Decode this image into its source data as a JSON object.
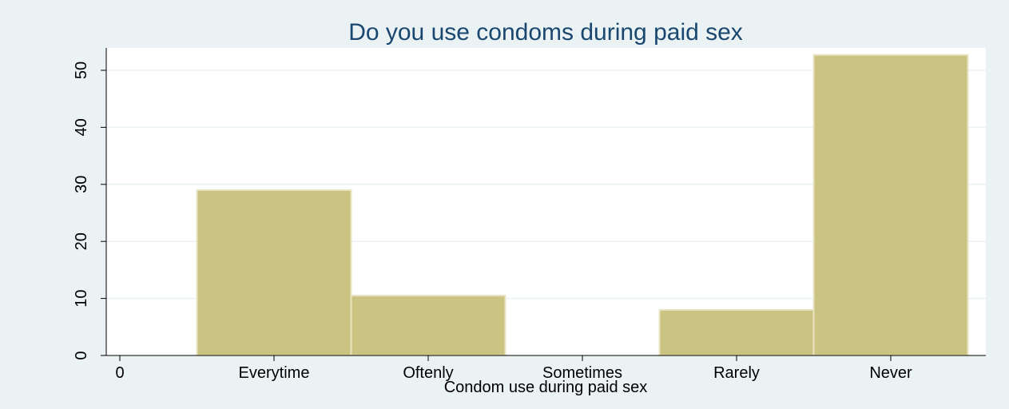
{
  "chart_data": {
    "type": "bar",
    "title": "Do you use condoms during paid sex",
    "xlabel": "Condom use during paid sex",
    "ylabel": "",
    "x_tick_labels": [
      "0",
      "Everytime",
      "Oftenly",
      "Sometimes",
      "Rarely",
      "Never"
    ],
    "categories": [
      "Everytime",
      "Oftenly",
      "Sometimes",
      "Rarely",
      "Never"
    ],
    "values": [
      29,
      10.5,
      0,
      8,
      52.7
    ],
    "yticks": [
      0,
      10,
      20,
      30,
      40,
      50
    ],
    "ylim": [
      0,
      53
    ],
    "grid": true,
    "colors": {
      "bar_fill": "#cbc382",
      "bar_stroke": "#e8e4c4",
      "plot_background": "#ffffff",
      "outer_background": "#eaf2f3",
      "title_color": "#1a476f",
      "grid_color": "#eaf2f3"
    }
  }
}
